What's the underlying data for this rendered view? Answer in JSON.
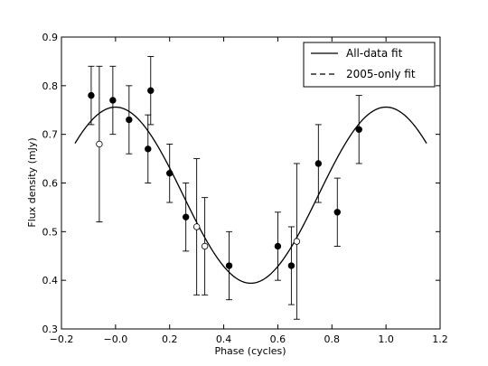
{
  "chart_data": {
    "type": "scatter",
    "title": "",
    "xlabel": "Phase (cycles)",
    "ylabel": "Flux density (mJy)",
    "xlim": [
      -0.2,
      1.2
    ],
    "ylim": [
      0.3,
      0.9
    ],
    "xticks": [
      -0.2,
      0.0,
      0.2,
      0.4,
      0.6,
      0.8,
      1.0,
      1.2
    ],
    "xtick_labels": [
      "−0.2",
      "−0.0",
      "0.2",
      "0.4",
      "0.6",
      "0.8",
      "1.0",
      "1.2"
    ],
    "yticks": [
      0.3,
      0.4,
      0.5,
      0.6,
      0.7,
      0.8,
      0.9
    ],
    "ytick_labels": [
      "0.3",
      "0.4",
      "0.5",
      "0.6",
      "0.7",
      "0.8",
      "0.9"
    ],
    "grid": false,
    "legend_position": "top-right",
    "legend": [
      {
        "label": "All-data fit",
        "style": "solid"
      },
      {
        "label": "2005-only fit",
        "style": "dashed"
      }
    ],
    "fit_curve": {
      "mean": 0.575,
      "amplitude": 0.181,
      "peak_phase": 0.0,
      "period": 1.0,
      "x_range": [
        -0.15,
        1.15
      ]
    },
    "filled_points": [
      {
        "x": -0.09,
        "y": 0.78,
        "err": 0.06
      },
      {
        "x": -0.01,
        "y": 0.77,
        "err": 0.07
      },
      {
        "x": 0.05,
        "y": 0.73,
        "err": 0.07
      },
      {
        "x": 0.12,
        "y": 0.67,
        "err": 0.07
      },
      {
        "x": 0.13,
        "y": 0.79,
        "err": 0.07
      },
      {
        "x": 0.2,
        "y": 0.62,
        "err": 0.06
      },
      {
        "x": 0.26,
        "y": 0.53,
        "err": 0.07
      },
      {
        "x": 0.42,
        "y": 0.43,
        "err": 0.07
      },
      {
        "x": 0.6,
        "y": 0.47,
        "err": 0.07
      },
      {
        "x": 0.65,
        "y": 0.43,
        "err": 0.08
      },
      {
        "x": 0.75,
        "y": 0.64,
        "err": 0.08
      },
      {
        "x": 0.82,
        "y": 0.54,
        "err": 0.07
      },
      {
        "x": 0.9,
        "y": 0.71,
        "err": 0.07
      }
    ],
    "open_points": [
      {
        "x": -0.06,
        "y": 0.68,
        "err": 0.16
      },
      {
        "x": 0.3,
        "y": 0.51,
        "err": 0.14
      },
      {
        "x": 0.33,
        "y": 0.47,
        "err": 0.1
      },
      {
        "x": 0.67,
        "y": 0.48,
        "err": 0.16
      }
    ]
  }
}
